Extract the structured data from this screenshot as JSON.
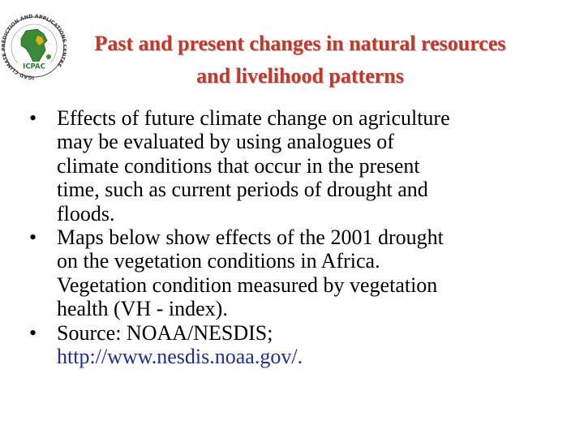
{
  "logo": {
    "icon": "icpac-africa-logo-icon",
    "ring_text": "IGAD CLIMATE PREDICTION AND APPLICATIONS CENTRE",
    "acronym": "ICPAC"
  },
  "title": {
    "line1": "Past and present changes in natural resources",
    "line2": "and livelihood patterns",
    "color": "#c0392b"
  },
  "bullets": [
    {
      "lines": [
        "Effects of future climate change on agriculture",
        "may be evaluated by using analogues of",
        "climate conditions that occur in the present",
        "time, such as current periods of drought and",
        "floods."
      ]
    },
    {
      "lines": [
        "Maps below show effects of the 2001 drought",
        "on the vegetation conditions in Africa.",
        "Vegetation condition measured by vegetation",
        "health (VH - index)."
      ]
    },
    {
      "lines": [
        "Source: NOAA/NESDIS;"
      ],
      "link": "http://www.nesdis.noaa.gov/."
    }
  ],
  "bullet_symbol": "•"
}
